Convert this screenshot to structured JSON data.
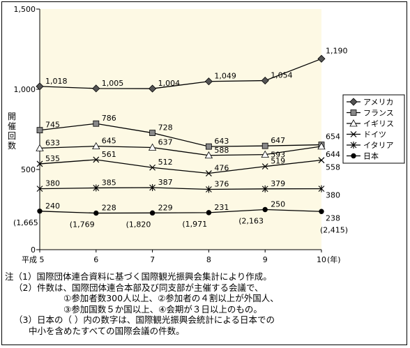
{
  "chart_data": {
    "type": "line",
    "ylabel": "開催回数",
    "ylim": [
      0,
      1500
    ],
    "yticks": [
      "0",
      "500",
      "1,000",
      "1,500"
    ],
    "ytick_values": [
      0,
      500,
      1000,
      1500
    ],
    "categories": [
      "平成 5",
      "6",
      "7",
      "8",
      "9",
      "10"
    ],
    "x_unit": "(年)",
    "grid": false,
    "legend_position": "right",
    "series": [
      {
        "name": "アメリカ",
        "marker": "diamond",
        "values": [
          1018,
          1005,
          1004,
          1049,
          1054,
          1190
        ],
        "labels": [
          "1,018",
          "1,005",
          "1,004",
          "1,049",
          "1,054",
          "1,190"
        ]
      },
      {
        "name": "フランス",
        "marker": "square",
        "values": [
          745,
          786,
          728,
          643,
          647,
          654
        ],
        "labels": [
          "745",
          "786",
          "728",
          "643",
          "647",
          "654"
        ]
      },
      {
        "name": "イギリス",
        "marker": "triangle",
        "values": [
          633,
          645,
          637,
          588,
          593,
          644
        ],
        "labels": [
          "633",
          "645",
          "637",
          "588",
          "593",
          "644"
        ]
      },
      {
        "name": "ドイツ",
        "marker": "cross",
        "values": [
          535,
          561,
          512,
          476,
          519,
          558
        ],
        "labels": [
          "535",
          "561",
          "512",
          "476",
          "519",
          "558"
        ]
      },
      {
        "name": "イタリア",
        "marker": "asterisk",
        "values": [
          380,
          385,
          387,
          376,
          379,
          380
        ],
        "labels": [
          "380",
          "385",
          "387",
          "376",
          "379",
          "380"
        ]
      },
      {
        "name": "日本",
        "marker": "circle",
        "values": [
          240,
          228,
          229,
          231,
          250,
          238
        ],
        "labels": [
          "240",
          "228",
          "229",
          "231",
          "250",
          "238"
        ],
        "secondary_values": [
          1665,
          1769,
          1820,
          1971,
          2163,
          2415
        ],
        "secondary_labels": [
          "(1,665",
          "(1,769",
          "(1,820",
          "(1,971",
          "(2,163",
          "(2,415)"
        ]
      }
    ]
  },
  "notes": [
    "注（1）国際団体連合資料に基づく国際観光振興会集計により作成。",
    "（2）件数は、国際団体連合本部及び同支部が主催する会議で、",
    "①参加者数300人以上、②参加者の４割以上が外国人、",
    "③参加国数５か国以上、④会期が３日以上のもの。",
    "（3）日本の（ ）内の数字は、国際観光振興会統計による日本での",
    "中小を含めたすべての国際会議の件数。"
  ],
  "colors": {
    "plot_bg": "#fdf9e4",
    "line": "#000000",
    "marker_fill": "#555555"
  }
}
